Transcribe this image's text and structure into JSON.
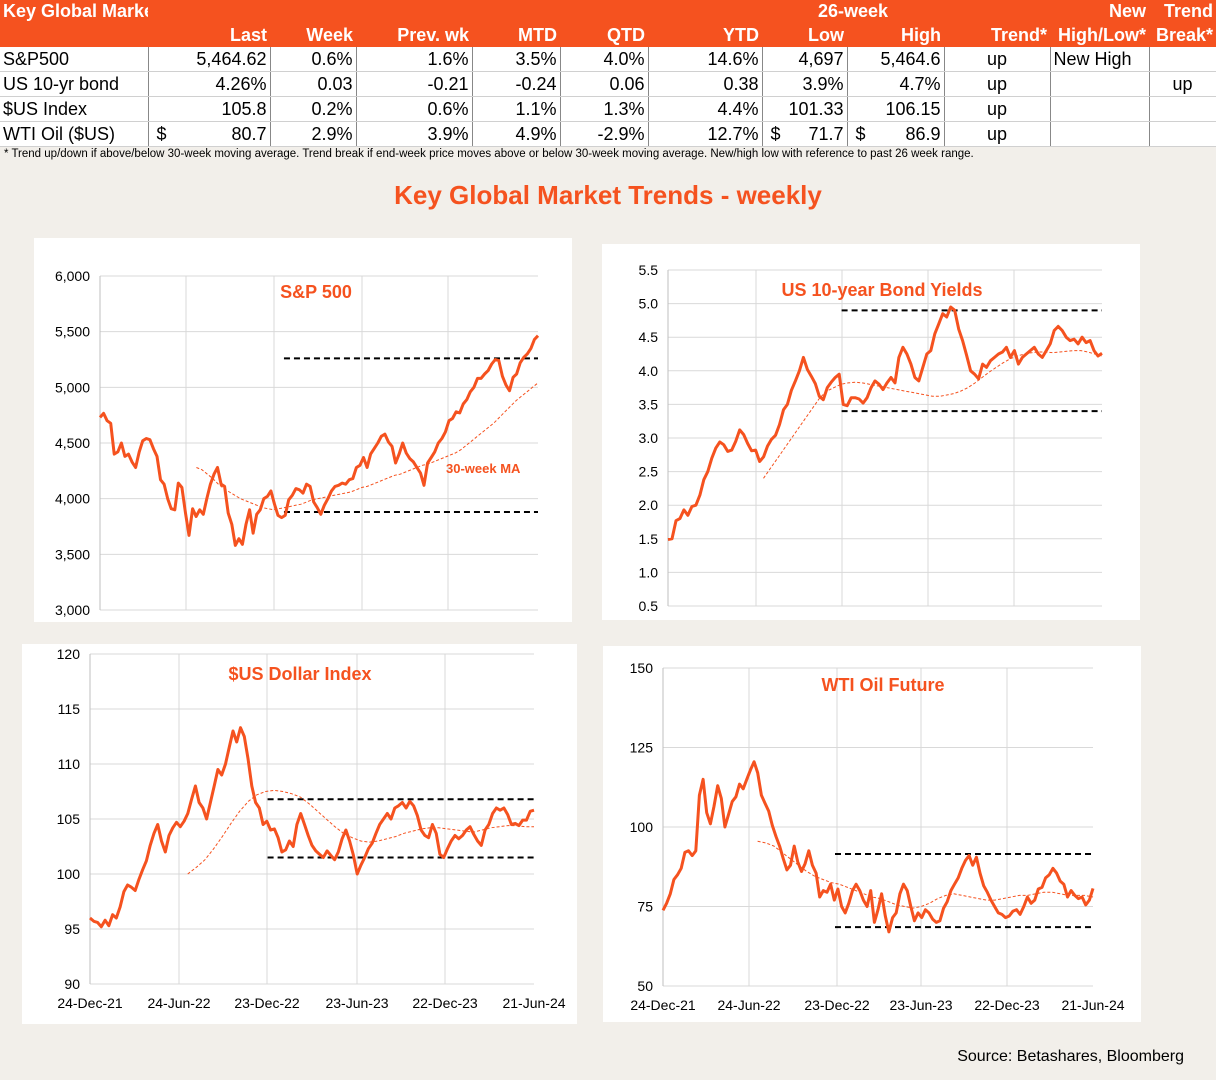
{
  "table": {
    "title": "Key Global Markets",
    "columns_top": [
      "",
      "",
      "",
      "",
      "",
      "",
      "",
      "26-week",
      "",
      "",
      "New",
      "Trend"
    ],
    "columns": [
      "",
      "Last",
      "Week",
      "Prev. wk",
      "MTD",
      "QTD",
      "YTD",
      "Low",
      "High",
      "Trend*",
      "High/Low*",
      "Break*"
    ],
    "rows": [
      {
        "name": "S&P500",
        "cur": "",
        "last": "5,464.62",
        "week": "0.6%",
        "prev": "1.6%",
        "mtd": "3.5%",
        "qtd": "4.0%",
        "ytd": "14.6%",
        "low_cur": "",
        "low": "4,697",
        "high_cur": "",
        "high": "5,464.6",
        "trend": "up",
        "newhl": "New High",
        "brk": ""
      },
      {
        "name": "US 10-yr bond",
        "cur": "",
        "last": "4.26%",
        "week": "0.03",
        "prev": "-0.21",
        "mtd": "-0.24",
        "qtd": "0.06",
        "ytd": "0.38",
        "low_cur": "",
        "low": "3.9%",
        "high_cur": "",
        "high": "4.7%",
        "trend": "up",
        "newhl": "",
        "brk": "up"
      },
      {
        "name": "$US Index",
        "cur": "",
        "last": "105.8",
        "week": "0.2%",
        "prev": "0.6%",
        "mtd": "1.1%",
        "qtd": "1.3%",
        "ytd": "4.4%",
        "low_cur": "",
        "low": "101.33",
        "high_cur": "",
        "high": "106.15",
        "trend": "up",
        "newhl": "",
        "brk": ""
      },
      {
        "name": "WTI Oil ($US)",
        "cur": "$",
        "last": "80.7",
        "week": "2.9%",
        "prev": "3.9%",
        "mtd": "4.9%",
        "qtd": "-2.9%",
        "ytd": "12.7%",
        "low_cur": "$",
        "low": "71.7",
        "high_cur": "$",
        "high": "86.9",
        "trend": "up",
        "newhl": "",
        "brk": ""
      }
    ],
    "footnote": "*  Trend up/down if above/below 30-week moving average. Trend break if end-week price moves above or below 30-week moving average.  New/high low with reference to past 26 week range."
  },
  "main_title": "Key Global Market Trends - weekly",
  "source": "Source: Betashares, Bloomberg",
  "colors": {
    "accent": "#f5521f",
    "line": "#f5521f",
    "ma": "#f5521f",
    "band": "#000000",
    "grid": "#d9d9d9"
  },
  "chart_data": [
    {
      "type": "line",
      "title": "S&P 500",
      "ylim": [
        3000,
        6000
      ],
      "yticks": [
        "3,000",
        "3,500",
        "4,000",
        "4,500",
        "5,000",
        "5,500",
        "6,000"
      ],
      "xticks": [],
      "annotation": "30-week MA",
      "band": {
        "low": 3880,
        "high": 5260,
        "x_start": 0.42
      },
      "series": [
        {
          "values": [
            4730,
            4766,
            4700,
            4677,
            4400,
            4420,
            4500,
            4380,
            4400,
            4330,
            4280,
            4420,
            4520,
            4540,
            4530,
            4450,
            4380,
            4170,
            4130,
            4000,
            3910,
            3900,
            4140,
            4100,
            3870,
            3670,
            3910,
            3840,
            3900,
            3860,
            4000,
            4130,
            4220,
            4280,
            4130,
            4110,
            3870,
            3770,
            3580,
            3640,
            3590,
            3770,
            3900,
            3690,
            3860,
            3900,
            4000,
            4020,
            4070,
            3950,
            3850,
            3830,
            3850,
            3990,
            4030,
            4090,
            4080,
            4050,
            4130,
            4110,
            3970,
            3920,
            3860,
            3940,
            4000,
            4070,
            4110,
            4120,
            4140,
            4130,
            4170,
            4180,
            4280,
            4300,
            4370,
            4280,
            4400,
            4450,
            4500,
            4560,
            4580,
            4510,
            4470,
            4320,
            4400,
            4500,
            4410,
            4360,
            4330,
            4280,
            4230,
            4120,
            4320,
            4370,
            4420,
            4500,
            4540,
            4600,
            4700,
            4720,
            4780,
            4770,
            4850,
            4890,
            4960,
            5000,
            5080,
            5080,
            5120,
            5150,
            5210,
            5250,
            5240,
            5100,
            5020,
            4970,
            5090,
            5120,
            5220,
            5270,
            5300,
            5350,
            5430,
            5464
          ]
        },
        {
          "values": [
            4280,
            4260,
            4220,
            4180,
            4130,
            4090,
            4060,
            4030,
            4000,
            3980,
            3960,
            3940,
            3920,
            3910,
            3900,
            3910,
            3920,
            3930,
            3940,
            3950,
            3970,
            3990,
            4000,
            4010,
            4020,
            4030,
            4040,
            4050,
            4060,
            4080,
            4100,
            4110,
            4130,
            4150,
            4170,
            4190,
            4210,
            4220,
            4240,
            4260,
            4280,
            4300,
            4310,
            4330,
            4350,
            4370,
            4390,
            4410,
            4440,
            4480,
            4520,
            4560,
            4600,
            4640,
            4680,
            4730,
            4780,
            4830,
            4880,
            4920,
            4960,
            5000,
            5040
          ]
        }
      ],
      "ma_start": 0.22
    },
    {
      "type": "line",
      "title": "US 10-year Bond Yields",
      "ylim": [
        0.5,
        5.5
      ],
      "yticks": [
        "0.5",
        "1.0",
        "1.5",
        "2.0",
        "2.5",
        "3.0",
        "3.5",
        "4.0",
        "4.5",
        "5.0",
        "5.5"
      ],
      "xticks": [],
      "band": {
        "low": 3.4,
        "high": 4.9,
        "x_start": 0.4
      },
      "series": [
        {
          "values": [
            1.49,
            1.5,
            1.77,
            1.8,
            1.93,
            1.85,
            1.98,
            2.0,
            2.15,
            2.38,
            2.5,
            2.7,
            2.85,
            2.94,
            2.9,
            2.8,
            2.82,
            2.95,
            3.12,
            3.05,
            2.92,
            2.81,
            2.82,
            2.65,
            2.72,
            2.88,
            2.98,
            3.04,
            3.2,
            3.42,
            3.5,
            3.71,
            3.85,
            4.0,
            4.2,
            4.02,
            3.92,
            3.81,
            3.62,
            3.57,
            3.75,
            3.83,
            3.9,
            3.95,
            3.5,
            3.48,
            3.6,
            3.6,
            3.58,
            3.52,
            3.6,
            3.75,
            3.85,
            3.8,
            3.72,
            3.82,
            3.9,
            3.82,
            4.2,
            4.35,
            4.25,
            4.1,
            3.9,
            3.85,
            4.05,
            4.25,
            4.3,
            4.55,
            4.7,
            4.85,
            4.8,
            4.95,
            4.9,
            4.62,
            4.45,
            4.23,
            4.0,
            3.95,
            3.88,
            4.1,
            4.05,
            4.15,
            4.2,
            4.25,
            4.28,
            4.35,
            4.2,
            4.3,
            4.1,
            4.2,
            4.25,
            4.3,
            4.35,
            4.25,
            4.2,
            4.3,
            4.4,
            4.6,
            4.66,
            4.6,
            4.5,
            4.45,
            4.47,
            4.4,
            4.5,
            4.42,
            4.45,
            4.3,
            4.22,
            4.26
          ]
        },
        {
          "values": [
            2.4,
            2.55,
            2.7,
            2.85,
            3.0,
            3.15,
            3.3,
            3.45,
            3.6,
            3.7,
            3.75,
            3.8,
            3.82,
            3.83,
            3.82,
            3.8,
            3.78,
            3.76,
            3.74,
            3.72,
            3.7,
            3.68,
            3.66,
            3.64,
            3.62,
            3.62,
            3.64,
            3.66,
            3.7,
            3.75,
            3.82,
            3.9,
            3.98,
            4.05,
            4.12,
            4.18,
            4.22,
            4.25,
            4.27,
            4.28,
            4.28,
            4.27,
            4.28,
            4.29,
            4.3,
            4.3,
            4.28,
            4.25,
            4.22
          ]
        }
      ],
      "ma_start": 0.22
    },
    {
      "type": "line",
      "title": "$US Dollar Index",
      "ylim": [
        90,
        120
      ],
      "yticks": [
        "90",
        "95",
        "100",
        "105",
        "110",
        "115",
        "120"
      ],
      "xticks": [
        "24-Dec-21",
        "24-Jun-22",
        "23-Dec-22",
        "23-Jun-23",
        "22-Dec-23",
        "21-Jun-24"
      ],
      "band": {
        "low": 101.5,
        "high": 106.8,
        "x_start": 0.4
      },
      "series": [
        {
          "values": [
            96.0,
            95.7,
            95.6,
            95.2,
            95.8,
            95.3,
            96.3,
            96.0,
            97.0,
            98.4,
            99.0,
            98.8,
            98.5,
            99.5,
            100.4,
            101.2,
            102.6,
            103.7,
            104.5,
            103.0,
            102.0,
            103.5,
            104.2,
            104.7,
            104.3,
            104.8,
            105.5,
            106.8,
            108.0,
            106.5,
            106.0,
            105.0,
            106.5,
            108.0,
            109.5,
            109.0,
            110.0,
            111.5,
            113.0,
            112.0,
            113.3,
            112.5,
            110.5,
            108.0,
            106.5,
            106.0,
            104.5,
            104.8,
            104.0,
            104.1,
            103.3,
            102.0,
            102.2,
            103.0,
            102.5,
            104.5,
            105.5,
            104.5,
            103.5,
            102.6,
            102.1,
            101.8,
            101.5,
            102.1,
            101.7,
            101.3,
            102.0,
            103.2,
            104.0,
            103.0,
            101.7,
            100.0,
            100.8,
            101.5,
            102.3,
            102.8,
            103.7,
            104.5,
            105.0,
            105.5,
            105.0,
            106.0,
            106.2,
            106.5,
            106.0,
            106.6,
            106.2,
            105.3,
            104.0,
            103.5,
            103.3,
            104.5,
            103.7,
            101.8,
            101.5,
            102.3,
            103.0,
            103.5,
            103.2,
            103.5,
            104.0,
            104.3,
            103.6,
            103.0,
            102.6,
            104.0,
            104.5,
            105.5,
            106.0,
            105.8,
            106.0,
            105.4,
            104.5,
            104.6,
            104.4,
            104.9,
            104.9,
            105.7,
            105.8
          ]
        },
        {
          "values": [
            100.0,
            100.6,
            101.3,
            102.3,
            103.4,
            104.6,
            105.7,
            106.6,
            107.2,
            107.5,
            107.6,
            107.5,
            107.3,
            107.0,
            106.4,
            105.7,
            105.0,
            104.3,
            103.7,
            103.3,
            103.0,
            102.9,
            103.0,
            103.2,
            103.4,
            103.7,
            103.9,
            104.1,
            104.2,
            104.2,
            104.1,
            104.0,
            103.9,
            103.8,
            104.0,
            104.2,
            104.3,
            104.4,
            104.4,
            104.3,
            104.3
          ]
        }
      ],
      "ma_start": 0.22
    },
    {
      "type": "line",
      "title": "WTI Oil Future",
      "ylim": [
        50,
        150
      ],
      "yticks": [
        "50",
        "75",
        "100",
        "125",
        "150"
      ],
      "xticks": [
        "24-Dec-21",
        "24-Jun-22",
        "23-Dec-22",
        "23-Jun-23",
        "22-Dec-23",
        "21-Jun-24"
      ],
      "band": {
        "low": 68.5,
        "high": 91.5,
        "x_start": 0.4
      },
      "series": [
        {
          "values": [
            73.8,
            76.0,
            79.0,
            83.5,
            85.0,
            87.0,
            92.0,
            92.5,
            91.0,
            92.5,
            110.0,
            115.0,
            104.5,
            101.0,
            106.5,
            113.0,
            109.0,
            100.0,
            104.0,
            108.0,
            109.5,
            113.5,
            112.0,
            115.0,
            118.0,
            120.5,
            117.0,
            110.0,
            107.5,
            105.0,
            100.5,
            97.0,
            94.0,
            90.0,
            86.5,
            88.0,
            94.0,
            89.0,
            86.0,
            88.5,
            92.5,
            88.0,
            85.5,
            78.0,
            80.0,
            79.5,
            82.0,
            77.0,
            80.5,
            75.0,
            73.0,
            76.0,
            80.0,
            82.0,
            80.0,
            77.0,
            75.0,
            80.0,
            70.0,
            74.0,
            79.0,
            72.0,
            67.0,
            71.5,
            73.0,
            79.0,
            82.0,
            80.0,
            75.0,
            70.5,
            73.0,
            71.5,
            74.0,
            73.0,
            71.0,
            70.0,
            70.5,
            74.5,
            76.5,
            80.0,
            82.0,
            84.0,
            87.0,
            89.5,
            91.0,
            88.0,
            90.5,
            85.5,
            81.5,
            79.5,
            77.0,
            75.0,
            73.0,
            72.5,
            71.5,
            72.0,
            73.5,
            74.0,
            72.5,
            75.0,
            78.0,
            76.0,
            77.0,
            80.5,
            81.0,
            84.0,
            85.0,
            87.0,
            85.5,
            83.0,
            82.0,
            78.0,
            80.0,
            78.5,
            77.5,
            78.0,
            75.5,
            77.0,
            80.7
          ]
        },
        {
          "values": [
            95.5,
            95.0,
            94.0,
            92.0,
            90.0,
            88.0,
            86.0,
            84.5,
            83.5,
            82.5,
            82.0,
            81.0,
            80.0,
            79.0,
            78.0,
            77.5,
            76.5,
            75.5,
            75.0,
            74.5,
            75.0,
            76.0,
            77.5,
            78.5,
            79.0,
            78.5,
            78.0,
            77.5,
            77.0,
            77.0,
            77.5,
            78.0,
            78.5,
            78.5,
            79.0,
            79.5,
            79.5,
            79.0,
            78.5,
            78.5,
            78.5,
            78.0
          ]
        }
      ],
      "ma_start": 0.22
    }
  ]
}
